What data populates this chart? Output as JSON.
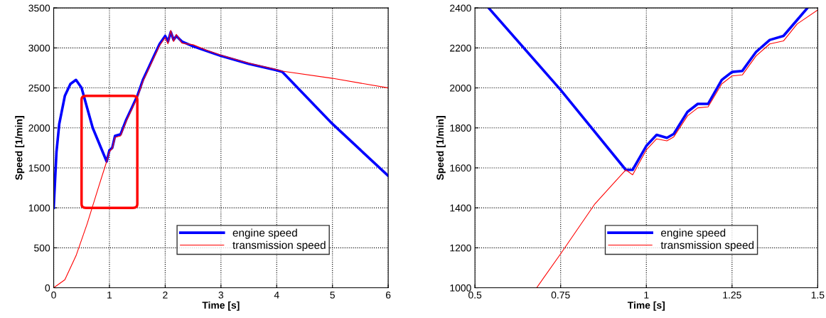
{
  "chart_data": [
    {
      "type": "line",
      "xlabel": "Time [s]",
      "ylabel": "Speed [1/min]",
      "xlim": [
        0,
        6
      ],
      "ylim": [
        0,
        3500
      ],
      "xticks": [
        0,
        1,
        2,
        3,
        4,
        5,
        6
      ],
      "yticks": [
        0,
        500,
        1000,
        1500,
        2000,
        2500,
        3000,
        3500
      ],
      "grid": true,
      "legend": "bottom right",
      "series": [
        {
          "name": "engine speed",
          "color": "#0000ff",
          "x": [
            0,
            0.05,
            0.1,
            0.2,
            0.3,
            0.4,
            0.5,
            0.6,
            0.7,
            0.95,
            1.0,
            1.05,
            1.1,
            1.2,
            1.3,
            1.4,
            1.5,
            1.6,
            1.7,
            1.8,
            1.9,
            2.0,
            2.05,
            2.1,
            2.15,
            2.2,
            2.3,
            2.5,
            2.75,
            3.0,
            3.5,
            4.0,
            4.1,
            5.0,
            6.0
          ],
          "values": [
            1000,
            1700,
            2050,
            2400,
            2550,
            2600,
            2500,
            2250,
            2000,
            1580,
            1720,
            1750,
            1900,
            1920,
            2100,
            2250,
            2400,
            2600,
            2750,
            2900,
            3050,
            3150,
            3080,
            3200,
            3100,
            3150,
            3080,
            3020,
            2960,
            2900,
            2800,
            2720,
            2700,
            2050,
            1400
          ]
        },
        {
          "name": "transmission speed",
          "color": "#ff0000",
          "x": [
            0,
            0.2,
            0.4,
            0.6,
            0.8,
            0.95,
            1.0,
            1.05,
            1.1,
            1.2,
            1.3,
            1.4,
            1.5,
            1.6,
            1.7,
            1.8,
            1.9,
            2.0,
            2.05,
            2.1,
            2.15,
            2.2,
            2.3,
            2.5,
            2.75,
            3.0,
            3.5,
            4.0,
            4.1,
            5.0,
            6.0
          ],
          "values": [
            0,
            100,
            400,
            800,
            1250,
            1580,
            1700,
            1740,
            1880,
            1900,
            2080,
            2230,
            2380,
            2580,
            2730,
            2880,
            3030,
            3130,
            3050,
            3220,
            3080,
            3170,
            3060,
            3040,
            2970,
            2910,
            2810,
            2730,
            2710,
            2620,
            2500
          ]
        }
      ]
    },
    {
      "type": "line",
      "xlabel": "Time [s]",
      "ylabel": "Speed [1/min]",
      "xlim": [
        0.5,
        1.5
      ],
      "ylim": [
        1000,
        2400
      ],
      "xticks": [
        0.5,
        0.75,
        1,
        1.25,
        1.5
      ],
      "yticks": [
        1000,
        1200,
        1400,
        1600,
        1800,
        2000,
        2200,
        2400
      ],
      "grid": true,
      "legend": "bottom right",
      "series": [
        {
          "name": "engine speed",
          "color": "#0000ff",
          "x": [
            0.54,
            0.75,
            0.94,
            0.96,
            1.0,
            1.03,
            1.06,
            1.08,
            1.12,
            1.15,
            1.18,
            1.22,
            1.25,
            1.28,
            1.32,
            1.36,
            1.4,
            1.44,
            1.47
          ],
          "values": [
            2400,
            1990,
            1590,
            1590,
            1710,
            1765,
            1750,
            1770,
            1880,
            1920,
            1920,
            2040,
            2080,
            2085,
            2180,
            2240,
            2260,
            2340,
            2400
          ]
        },
        {
          "name": "transmission speed",
          "color": "#ff0000",
          "x": [
            0.68,
            0.75,
            0.85,
            0.94,
            0.96,
            1.0,
            1.03,
            1.06,
            1.08,
            1.12,
            1.15,
            1.18,
            1.22,
            1.25,
            1.28,
            1.32,
            1.36,
            1.4,
            1.44,
            1.5
          ],
          "values": [
            1000,
            1170,
            1420,
            1590,
            1565,
            1690,
            1745,
            1735,
            1755,
            1860,
            1900,
            1905,
            2020,
            2060,
            2065,
            2160,
            2220,
            2235,
            2320,
            2390
          ]
        }
      ]
    }
  ]
}
